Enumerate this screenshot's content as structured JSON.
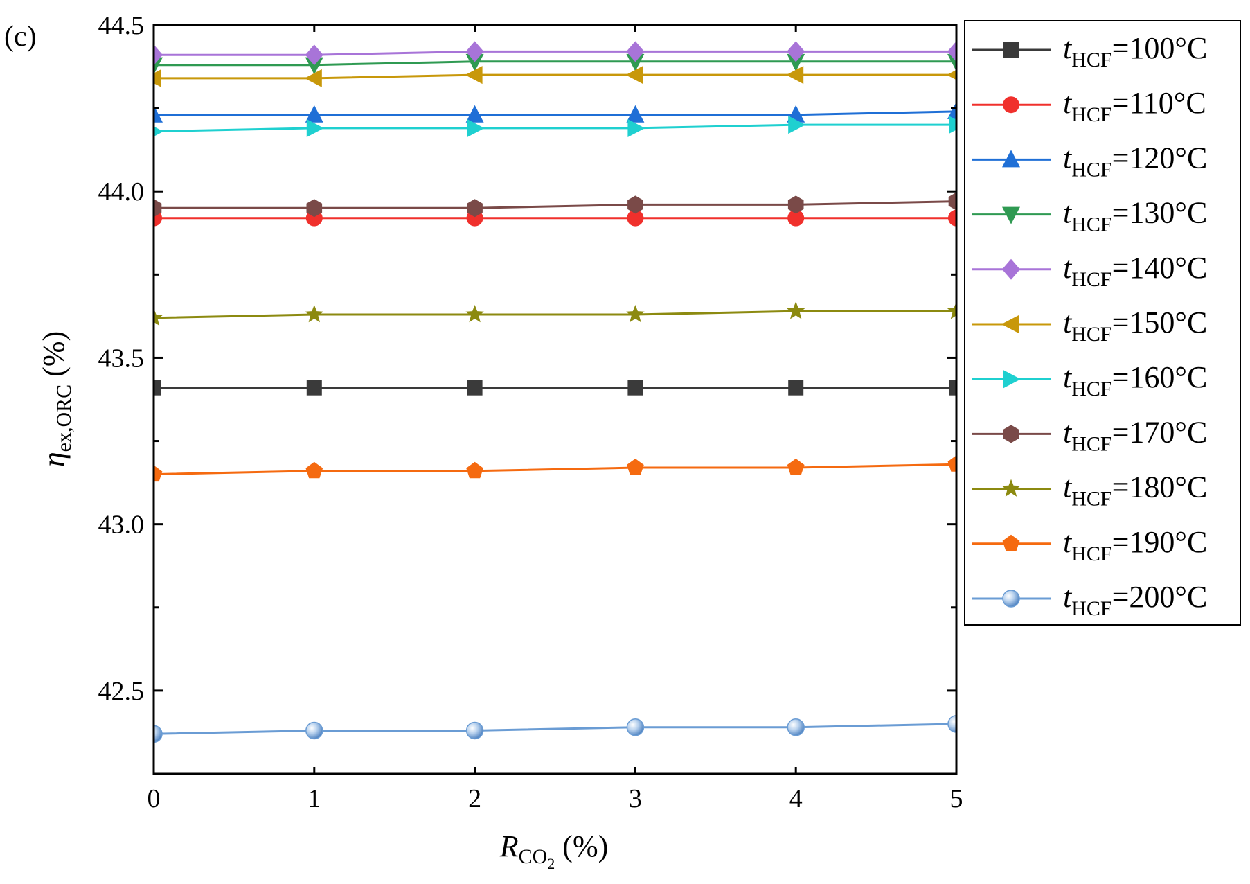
{
  "chart_data": {
    "type": "line",
    "panel_label": "(c)",
    "xlabel": {
      "symbol": "R",
      "subscript": "CO",
      "subscript2": "2",
      "unit": " (%)"
    },
    "ylabel": {
      "symbol": "η",
      "subscript": "ex,ORC",
      "unit": " (%)"
    },
    "xlim": [
      0,
      5
    ],
    "ylim": [
      42.25,
      44.5
    ],
    "xticks": [
      0,
      1,
      2,
      3,
      4,
      5
    ],
    "xtick_labels": [
      "0",
      "1",
      "2",
      "3",
      "4",
      "5"
    ],
    "yticks": [
      42.5,
      43.0,
      43.5,
      44.0,
      44.5
    ],
    "ytick_labels": [
      "42.5",
      "43.0",
      "43.5",
      "44.0",
      "44.5"
    ],
    "x": [
      0,
      1,
      2,
      3,
      4,
      5
    ],
    "legend_position": "outside-right",
    "series": [
      {
        "symbol": "t",
        "subscript": "HCF",
        "value": "=100°C",
        "color": "#3a3a3a",
        "marker": "square",
        "values": [
          43.41,
          43.41,
          43.41,
          43.41,
          43.41,
          43.41
        ]
      },
      {
        "symbol": "t",
        "subscript": "HCF",
        "value": "=110°C",
        "color": "#f0302c",
        "marker": "circle",
        "values": [
          43.92,
          43.92,
          43.92,
          43.92,
          43.92,
          43.92
        ]
      },
      {
        "symbol": "t",
        "subscript": "HCF",
        "value": "=120°C",
        "color": "#1f6fd6",
        "marker": "triangle-up",
        "values": [
          44.23,
          44.23,
          44.23,
          44.23,
          44.23,
          44.24
        ]
      },
      {
        "symbol": "t",
        "subscript": "HCF",
        "value": "=130°C",
        "color": "#2f9a52",
        "marker": "triangle-down",
        "values": [
          44.38,
          44.38,
          44.39,
          44.39,
          44.39,
          44.39
        ]
      },
      {
        "symbol": "t",
        "subscript": "HCF",
        "value": "=140°C",
        "color": "#a874d8",
        "marker": "diamond",
        "values": [
          44.41,
          44.41,
          44.42,
          44.42,
          44.42,
          44.42
        ]
      },
      {
        "symbol": "t",
        "subscript": "HCF",
        "value": "=150°C",
        "color": "#c8980a",
        "marker": "triangle-left",
        "values": [
          44.34,
          44.34,
          44.35,
          44.35,
          44.35,
          44.35
        ]
      },
      {
        "symbol": "t",
        "subscript": "HCF",
        "value": "=160°C",
        "color": "#1fd0d0",
        "marker": "triangle-right",
        "values": [
          44.18,
          44.19,
          44.19,
          44.19,
          44.2,
          44.2
        ]
      },
      {
        "symbol": "t",
        "subscript": "HCF",
        "value": "=170°C",
        "color": "#7a4a48",
        "marker": "hexagon",
        "values": [
          43.95,
          43.95,
          43.95,
          43.96,
          43.96,
          43.97
        ]
      },
      {
        "symbol": "t",
        "subscript": "HCF",
        "value": "=180°C",
        "color": "#8c8a10",
        "marker": "star",
        "values": [
          43.62,
          43.63,
          43.63,
          43.63,
          43.64,
          43.64
        ]
      },
      {
        "symbol": "t",
        "subscript": "HCF",
        "value": "=190°C",
        "color": "#f56a10",
        "marker": "pentagon",
        "values": [
          43.15,
          43.16,
          43.16,
          43.17,
          43.17,
          43.18
        ]
      },
      {
        "symbol": "t",
        "subscript": "HCF",
        "value": "=200°C",
        "color": "#6a9cd4",
        "marker": "sphere",
        "values": [
          42.37,
          42.38,
          42.38,
          42.39,
          42.39,
          42.4
        ]
      }
    ]
  }
}
